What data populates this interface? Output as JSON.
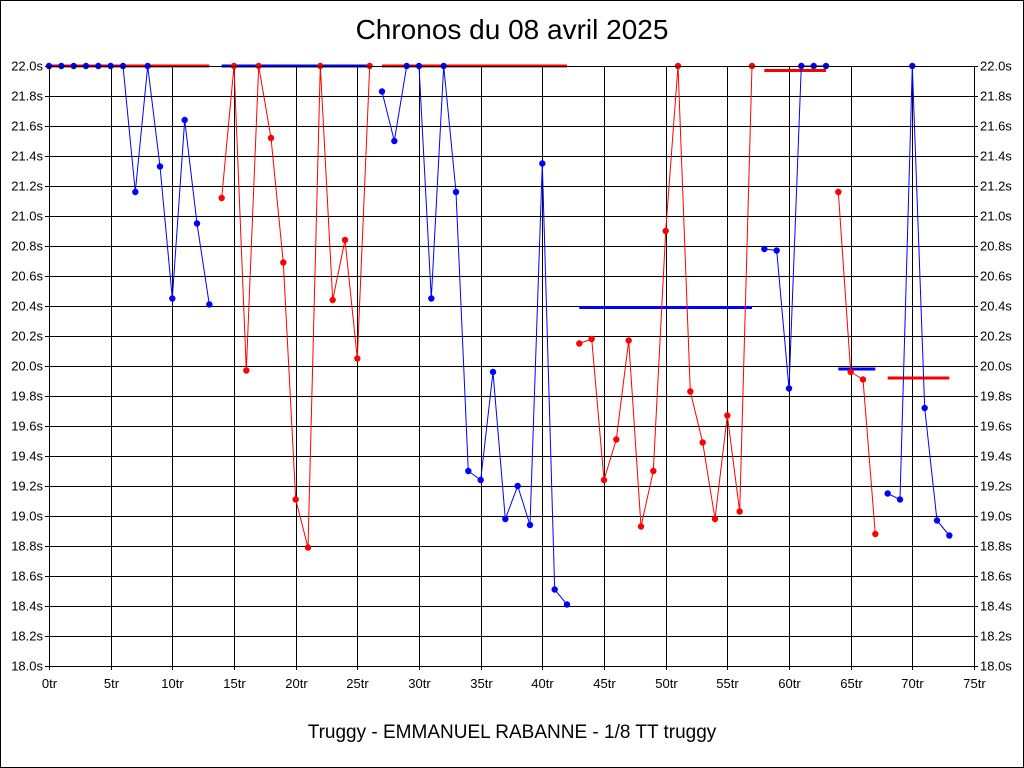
{
  "chart_data": {
    "type": "line",
    "title": "Chronos du 08 avril 2025",
    "subtitle": "Truggy - EMMANUEL RABANNE - 1/8 TT truggy",
    "xlabel": "",
    "ylabel": "",
    "xlim": [
      0,
      75
    ],
    "ylim": [
      18.0,
      22.0
    ],
    "x_ticks": [
      "0tr",
      "5tr",
      "10tr",
      "15tr",
      "20tr",
      "25tr",
      "30tr",
      "35tr",
      "40tr",
      "45tr",
      "50tr",
      "55tr",
      "60tr",
      "65tr",
      "70tr",
      "75tr"
    ],
    "y_ticks": [
      "18.0s",
      "18.2s",
      "18.4s",
      "18.6s",
      "18.8s",
      "19.0s",
      "19.2s",
      "19.4s",
      "19.6s",
      "19.8s",
      "20.0s",
      "20.2s",
      "20.4s",
      "20.6s",
      "20.8s",
      "21.0s",
      "21.2s",
      "21.4s",
      "21.6s",
      "21.8s",
      "22.0s"
    ],
    "grid": true,
    "legend": "none",
    "colors": {
      "blue": "#0000ff",
      "red": "#ff0000"
    },
    "series": [
      {
        "color": "#0000ff",
        "x": [
          0,
          1,
          2,
          3,
          4,
          5,
          6,
          7,
          8,
          9,
          10,
          11,
          12,
          13
        ],
        "y": [
          22.0,
          22.0,
          22.0,
          22.0,
          22.0,
          22.0,
          22.0,
          21.16,
          22.0,
          21.33,
          20.45,
          21.64,
          20.95,
          20.41
        ]
      },
      {
        "color": "#ff0000",
        "x": [
          14,
          15,
          16,
          17,
          18,
          19,
          20,
          21,
          22,
          23,
          24,
          25,
          26
        ],
        "y": [
          21.12,
          22.0,
          19.97,
          22.0,
          21.52,
          20.69,
          19.11,
          18.79,
          22.0,
          20.44,
          20.84,
          20.05,
          22.0
        ]
      },
      {
        "color": "#0000ff",
        "x": [
          27,
          28,
          29,
          30,
          31,
          32,
          33,
          34,
          35,
          36,
          37,
          38,
          39,
          40,
          41,
          42
        ],
        "y": [
          21.83,
          21.5,
          22.0,
          22.0,
          20.45,
          22.0,
          21.16,
          19.3,
          19.24,
          19.96,
          18.98,
          19.2,
          18.94,
          21.35,
          18.51,
          18.41
        ]
      },
      {
        "color": "#ff0000",
        "x": [
          43,
          44,
          45,
          46,
          47,
          48,
          49,
          50,
          51,
          52,
          53,
          54,
          55,
          56,
          57
        ],
        "y": [
          20.15,
          20.18,
          19.24,
          19.51,
          20.17,
          18.93,
          19.3,
          20.9,
          22.0,
          19.83,
          19.49,
          18.98,
          19.67,
          19.03,
          22.0
        ]
      },
      {
        "color": "#0000ff",
        "x": [
          58,
          59,
          60,
          61,
          62,
          63
        ],
        "y": [
          20.78,
          20.77,
          19.85,
          22.0,
          22.0,
          22.0
        ]
      },
      {
        "color": "#ff0000",
        "x": [
          64,
          65,
          66,
          67
        ],
        "y": [
          21.16,
          19.96,
          19.91,
          18.88
        ]
      },
      {
        "color": "#0000ff",
        "x": [
          68,
          69,
          70,
          71,
          72,
          73
        ],
        "y": [
          19.15,
          19.11,
          22.0,
          19.72,
          18.97,
          18.87
        ]
      }
    ],
    "average_lines": [
      {
        "color": "#ff0000",
        "x": [
          0,
          13
        ],
        "y": 22.0
      },
      {
        "color": "#0000ff",
        "x": [
          14,
          26
        ],
        "y": 22.0
      },
      {
        "color": "#ff0000",
        "x": [
          27,
          42
        ],
        "y": 22.0
      },
      {
        "color": "#0000ff",
        "x": [
          43,
          57
        ],
        "y": 20.39
      },
      {
        "color": "#ff0000",
        "x": [
          58,
          63
        ],
        "y": 21.97
      },
      {
        "color": "#0000ff",
        "x": [
          64,
          67
        ],
        "y": 19.98
      },
      {
        "color": "#ff0000",
        "x": [
          68,
          73
        ],
        "y": 19.92
      }
    ]
  }
}
